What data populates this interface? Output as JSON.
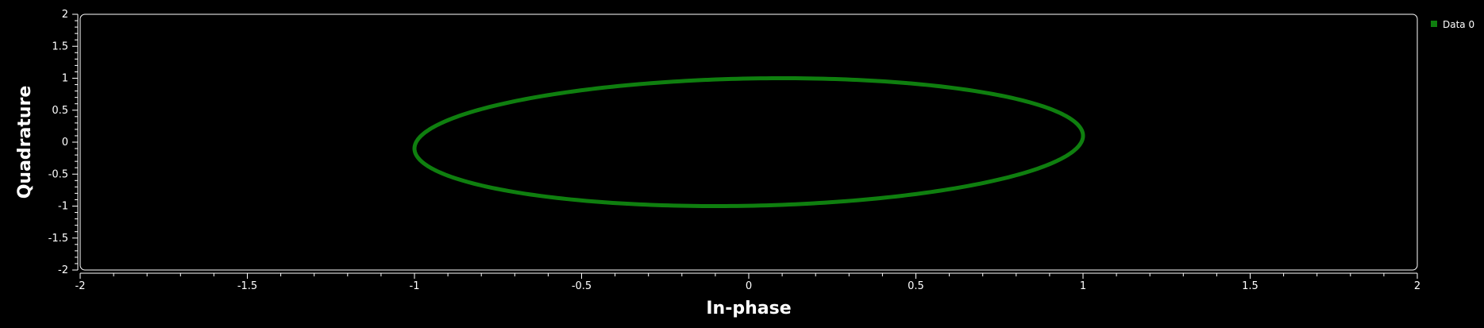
{
  "chart_data": {
    "type": "scatter",
    "title": "",
    "xlabel": "In-phase",
    "ylabel": "Quadrature",
    "xlim": [
      -2,
      2
    ],
    "ylim": [
      -2,
      2
    ],
    "x_ticks": [
      -2,
      -1.5,
      -1,
      -0.5,
      0,
      0.5,
      1,
      1.5,
      2
    ],
    "x_tick_labels": [
      "-2",
      "-1.5",
      "-1",
      "-0.5",
      "0",
      "0.5",
      "1",
      "1.5",
      "2"
    ],
    "y_ticks": [
      2,
      1.5,
      1,
      0.5,
      0,
      -0.5,
      -1,
      -1.5,
      -2
    ],
    "y_tick_labels": [
      "2",
      "1.5",
      "1",
      "0.5",
      "0",
      "-0.5",
      "-1",
      "-1.5",
      "-2"
    ],
    "grid": false,
    "legend_position": "right",
    "series": [
      {
        "name": "Data 0",
        "color": "#0f7f0f",
        "shape": "ellipse",
        "x": [
          1.0,
          0.966,
          0.866,
          0.707,
          0.5,
          0.259,
          0.0,
          -0.259,
          -0.5,
          -0.707,
          -0.866,
          -0.966,
          -1.0,
          -0.966,
          -0.866,
          -0.707,
          -0.5,
          -0.259,
          0.0,
          0.259,
          0.5,
          0.707,
          0.866,
          0.966,
          1.0
        ],
        "y": [
          0.1,
          0.355,
          0.587,
          0.778,
          0.916,
          0.991,
          1.0,
          0.941,
          0.816,
          0.636,
          0.412,
          0.161,
          -0.1,
          -0.355,
          -0.587,
          -0.778,
          -0.916,
          -0.991,
          -1.0,
          -0.941,
          -0.816,
          -0.636,
          -0.412,
          -0.161,
          0.1
        ]
      }
    ]
  }
}
